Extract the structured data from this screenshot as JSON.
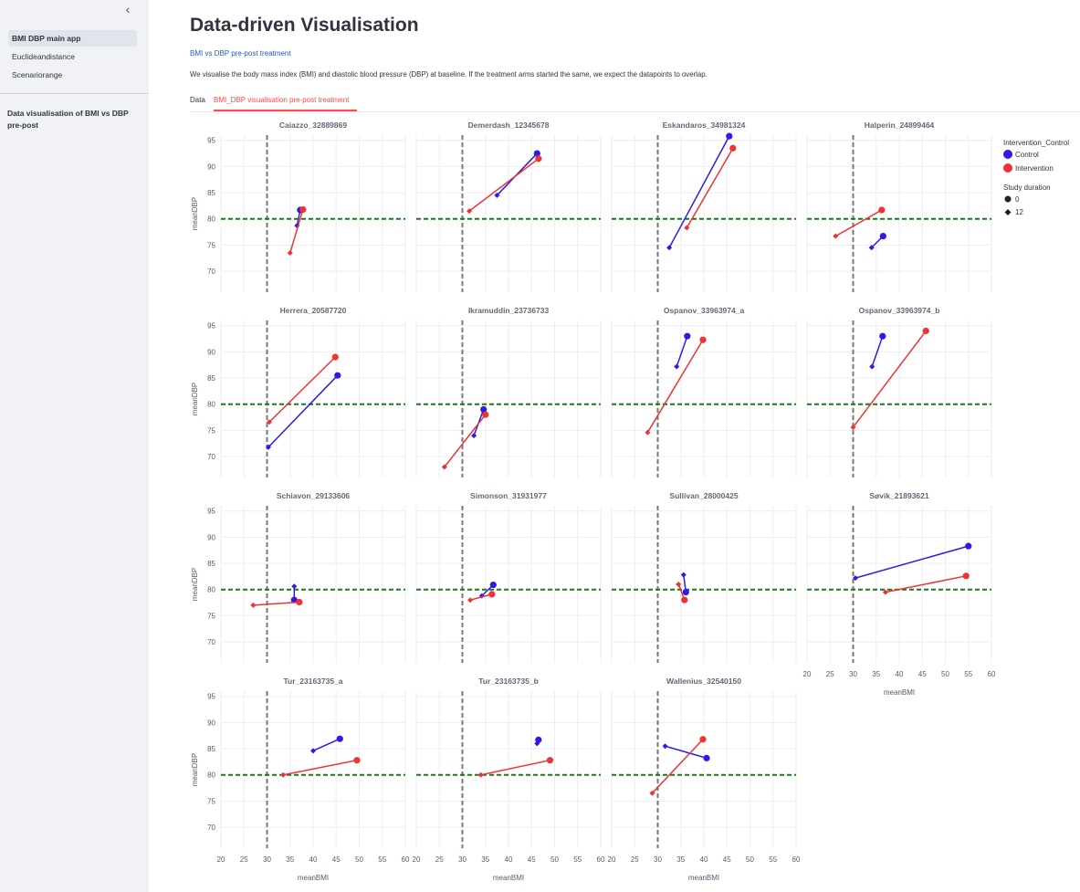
{
  "sidebar": {
    "collapse_icon": "chevron-left-icon",
    "nav": [
      "BMI DBP main app",
      "Euclideandistance",
      "Scenariorange"
    ],
    "active_index": 0,
    "section_title": "Data visualisation of BMI vs DBP pre-post"
  },
  "main": {
    "title": "Data-driven Visualisation",
    "subtitle_link": "BMI vs DBP pre-post treatment",
    "description": "We visualise the body mass index (BMI) and diastolic blood pressure (DBP) at baseline. If the treatment arms started the same, we expect the datapoints to overlap.",
    "tabs": [
      "Data",
      "BMI_DBP visualisation pre-post treatment"
    ],
    "active_tab": 1
  },
  "colors": {
    "control": "#2f1be6",
    "intervention": "#ef3234",
    "ref_bmi": "#777777",
    "ref_dbp": "#1a7a1a",
    "accent": "#ff4b4b"
  },
  "chart_data": {
    "type": "scatter",
    "facet_columns": 4,
    "xlabel": "meanBMI",
    "ylabel": "meanDBP",
    "xlim": [
      20,
      60
    ],
    "ylim": [
      66,
      96
    ],
    "xticks": [
      20,
      25,
      30,
      35,
      40,
      45,
      50,
      55,
      60
    ],
    "yticks": [
      70,
      75,
      80,
      85,
      90,
      95
    ],
    "ref_lines": {
      "bmi": 30,
      "dbp": 80
    },
    "legend": {
      "title_color": "Intervention_Control",
      "color_items": [
        "Control",
        "Intervention"
      ],
      "title_symbol": "Study duration",
      "symbol_items": [
        "0",
        "12"
      ],
      "position": "right"
    },
    "facets": [
      {
        "title": "Caiazzo_32889869",
        "control": [
          [
            37.2,
            81.7
          ],
          [
            36.5,
            78.7
          ]
        ],
        "intervention": [
          [
            37.8,
            81.8
          ],
          [
            35,
            73.5
          ]
        ]
      },
      {
        "title": "Demerdash_12345678",
        "control": [
          [
            46.2,
            92.5
          ],
          [
            37.5,
            84.5
          ]
        ],
        "intervention": [
          [
            46.5,
            91.5
          ],
          [
            31.5,
            81.5
          ]
        ]
      },
      {
        "title": "Eskandaros_34981324",
        "control": [
          [
            45.5,
            95.8
          ],
          [
            32.5,
            74.5
          ]
        ],
        "intervention": [
          [
            46.3,
            93.5
          ],
          [
            36.3,
            78.3
          ]
        ]
      },
      {
        "title": "Halperin_24899464",
        "control": [
          [
            36.5,
            76.7
          ],
          [
            34,
            74.5
          ]
        ],
        "intervention": [
          [
            36.2,
            81.7
          ],
          [
            26.2,
            76.7
          ]
        ]
      },
      {
        "title": "Herrera_20587720",
        "control": [
          [
            45.3,
            85.5
          ],
          [
            30.3,
            71.8
          ]
        ],
        "intervention": [
          [
            44.8,
            89
          ],
          [
            30.5,
            76.6
          ]
        ]
      },
      {
        "title": "Ikramuddin_23736733",
        "control": [
          [
            34.6,
            79
          ],
          [
            32.5,
            74
          ]
        ],
        "intervention": [
          [
            35,
            78
          ],
          [
            26.1,
            68
          ]
        ]
      },
      {
        "title": "Ospanov_33963974_a",
        "control": [
          [
            36.4,
            93
          ],
          [
            34.1,
            87.2
          ]
        ],
        "intervention": [
          [
            39.8,
            92.3
          ],
          [
            27.8,
            74.6
          ]
        ]
      },
      {
        "title": "Ospanov_33963974_b",
        "control": [
          [
            36.4,
            93
          ],
          [
            34.1,
            87.2
          ]
        ],
        "intervention": [
          [
            45.8,
            94
          ],
          [
            30,
            75.6
          ]
        ]
      },
      {
        "title": "Schiavon_29133606",
        "control": [
          [
            35.9,
            78
          ],
          [
            35.9,
            80.6
          ]
        ],
        "intervention": [
          [
            37,
            77.6
          ],
          [
            27,
            77
          ]
        ]
      },
      {
        "title": "Simonson_31931977",
        "control": [
          [
            36.7,
            80.9
          ],
          [
            34.2,
            78.8
          ]
        ],
        "intervention": [
          [
            36.4,
            79.1
          ],
          [
            31.7,
            78
          ]
        ]
      },
      {
        "title": "Sullivan_28000425",
        "control": [
          [
            36.1,
            79.5
          ],
          [
            35.6,
            82.8
          ]
        ],
        "intervention": [
          [
            35.8,
            78
          ],
          [
            34.5,
            81
          ]
        ]
      },
      {
        "title": "Søvik_21893621",
        "control": [
          [
            55,
            88.3
          ],
          [
            30.5,
            82.2
          ]
        ],
        "intervention": [
          [
            54.5,
            82.6
          ],
          [
            37,
            79.5
          ]
        ]
      },
      {
        "title": "Tur_23163735_a",
        "control": [
          [
            45.8,
            86.9
          ],
          [
            40,
            84.6
          ]
        ],
        "intervention": [
          [
            49.5,
            82.8
          ],
          [
            33.5,
            80
          ]
        ]
      },
      {
        "title": "Tur_23163735_b",
        "control": [
          [
            46.5,
            86.7
          ],
          [
            46.2,
            86
          ]
        ],
        "intervention": [
          [
            49,
            82.8
          ],
          [
            34,
            80
          ]
        ]
      },
      {
        "title": "Wallenius_32540150",
        "control": [
          [
            40.6,
            83.2
          ],
          [
            31.6,
            85.5
          ]
        ],
        "intervention": [
          [
            39.8,
            86.8
          ],
          [
            28.8,
            76.5
          ]
        ]
      }
    ]
  }
}
